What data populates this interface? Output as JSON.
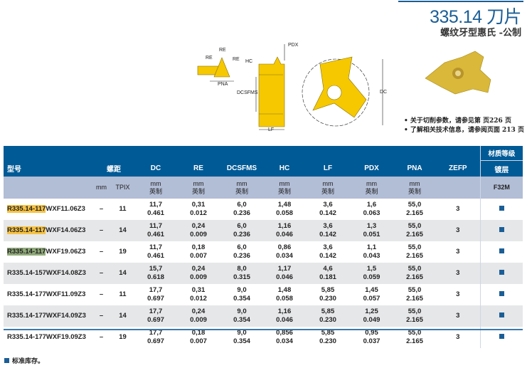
{
  "header": {
    "title": "335.14 刀片",
    "subtitle": "螺纹牙型惠氏 -公制"
  },
  "notes": [
    "关于切削参数，请参见第 页226 页",
    "了解相关技术信息，请参阅页面 213 页"
  ],
  "diagram_labels": {
    "re": "RE",
    "pna": "PNA",
    "pdx": "PDX",
    "hc": "HC",
    "dcsfms": "DCSFMS",
    "lf": "LF",
    "dc": "DC"
  },
  "table": {
    "grade_header": "材质等级",
    "coating_header": "镀层",
    "grade": "F32M",
    "col_model": "型号",
    "col_pitch": "螺距",
    "pitch_mm": "mm",
    "pitch_tpix": "TPIX",
    "cols": [
      "DC",
      "RE",
      "DCSFMS",
      "HC",
      "LF",
      "PDX",
      "PNA",
      "ZEFP"
    ],
    "unit_mm": "mm",
    "unit_inch": "英制",
    "rows": [
      {
        "model_hl": "R335.14-117",
        "model_rest": "WXF11.06Z3",
        "mm": "–",
        "tpix": "11",
        "dc": [
          "11,7",
          "0.461"
        ],
        "re": [
          "0,31",
          "0.012"
        ],
        "dcsfms": [
          "6,0",
          "0.236"
        ],
        "hc": [
          "1,48",
          "0.058"
        ],
        "lf": [
          "3,6",
          "0.142"
        ],
        "pdx": [
          "1,6",
          "0.063"
        ],
        "pna": [
          "55,0",
          "2.165"
        ],
        "zefp": "3"
      },
      {
        "model_hl": "R335.14-117",
        "model_rest": "WXF14.06Z3",
        "mm": "–",
        "tpix": "14",
        "dc": [
          "11,7",
          "0.461"
        ],
        "re": [
          "0,24",
          "0.009"
        ],
        "dcsfms": [
          "6,0",
          "0.236"
        ],
        "hc": [
          "1,16",
          "0.046"
        ],
        "lf": [
          "3,6",
          "0.142"
        ],
        "pdx": [
          "1,3",
          "0.051"
        ],
        "pna": [
          "55,0",
          "2.165"
        ],
        "zefp": "3"
      },
      {
        "model_hl": "R335.14-117",
        "model_rest": "WXF19.06Z3",
        "mm": "–",
        "tpix": "19",
        "dc": [
          "11,7",
          "0.461"
        ],
        "re": [
          "0,18",
          "0.007"
        ],
        "dcsfms": [
          "6,0",
          "0.236"
        ],
        "hc": [
          "0,86",
          "0.034"
        ],
        "lf": [
          "3,6",
          "0.142"
        ],
        "pdx": [
          "1,1",
          "0.043"
        ],
        "pna": [
          "55,0",
          "2.165"
        ],
        "zefp": "3"
      },
      {
        "model_hl": "",
        "model_rest": "R335.14-157WXF14.08Z3",
        "mm": "–",
        "tpix": "14",
        "dc": [
          "15,7",
          "0.618"
        ],
        "re": [
          "0,24",
          "0.009"
        ],
        "dcsfms": [
          "8,0",
          "0.315"
        ],
        "hc": [
          "1,17",
          "0.046"
        ],
        "lf": [
          "4,6",
          "0.181"
        ],
        "pdx": [
          "1,5",
          "0.059"
        ],
        "pna": [
          "55,0",
          "2.165"
        ],
        "zefp": "3"
      },
      {
        "model_hl": "",
        "model_rest": "R335.14-177WXF11.09Z3",
        "mm": "–",
        "tpix": "11",
        "dc": [
          "17,7",
          "0.697"
        ],
        "re": [
          "0,31",
          "0.012"
        ],
        "dcsfms": [
          "9,0",
          "0.354"
        ],
        "hc": [
          "1,48",
          "0.058"
        ],
        "lf": [
          "5,85",
          "0.230"
        ],
        "pdx": [
          "1,45",
          "0.057"
        ],
        "pna": [
          "55,0",
          "2.165"
        ],
        "zefp": "3"
      },
      {
        "model_hl": "",
        "model_rest": "R335.14-177WXF14.09Z3",
        "mm": "–",
        "tpix": "14",
        "dc": [
          "17,7",
          "0.697"
        ],
        "re": [
          "0,24",
          "0.009"
        ],
        "dcsfms": [
          "9,0",
          "0.354"
        ],
        "hc": [
          "1,16",
          "0.046"
        ],
        "lf": [
          "5,85",
          "0.230"
        ],
        "pdx": [
          "1,25",
          "0.049"
        ],
        "pna": [
          "55,0",
          "2.165"
        ],
        "zefp": "3"
      },
      {
        "model_hl": "",
        "model_rest": "R335.14-177WXF19.09Z3",
        "mm": "–",
        "tpix": "19",
        "dc": [
          "17,7",
          "0.697"
        ],
        "re": [
          "0,18",
          "0.007"
        ],
        "dcsfms": [
          "9,0",
          "0.354"
        ],
        "hc": [
          "0,856",
          "0.034"
        ],
        "lf": [
          "5,85",
          "0.230"
        ],
        "pdx": [
          "0,95",
          "0.037"
        ],
        "pna": [
          "55,0",
          "2.165"
        ],
        "zefp": "3"
      }
    ]
  },
  "legend": "标准库存。",
  "colors": {
    "brand": "#005a96",
    "subheader": "#b2bdd6",
    "insert": "#f5c800",
    "stock": "#1b5e96"
  }
}
